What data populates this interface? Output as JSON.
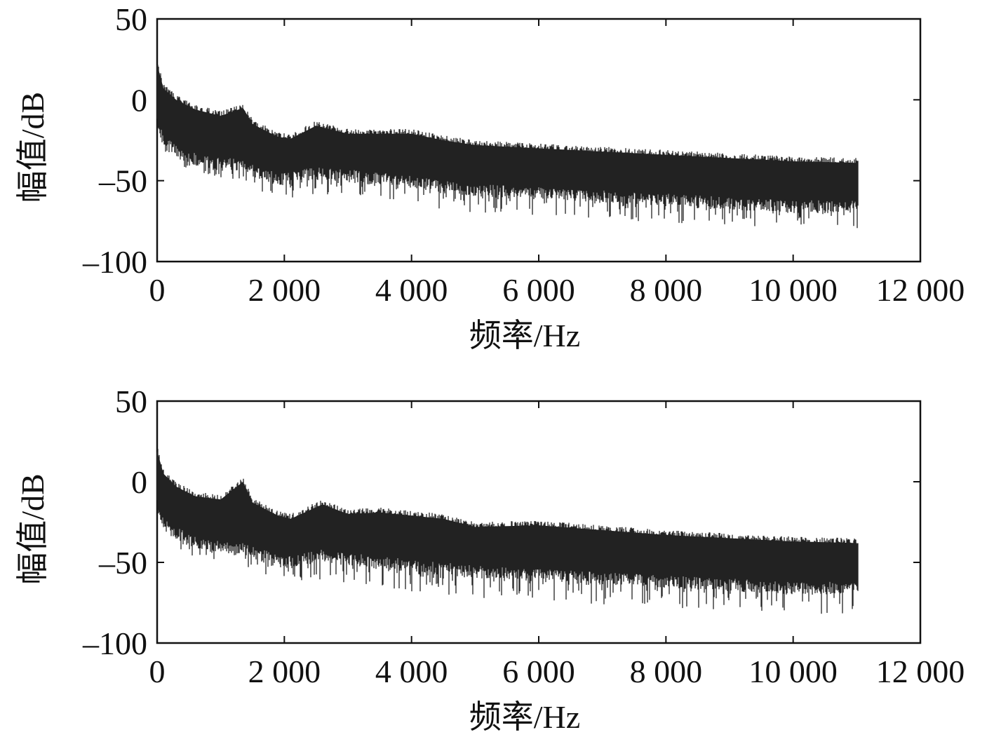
{
  "chart_data": [
    {
      "type": "line",
      "xlabel": "频率/Hz",
      "ylabel": "幅值/dB",
      "xlim": [
        0,
        12000
      ],
      "ylim": [
        -100,
        50
      ],
      "xticks": [
        0,
        2000,
        4000,
        6000,
        8000,
        10000,
        12000
      ],
      "xtick_labels": [
        "0",
        "2 000",
        "4 000",
        "6 000",
        "8 000",
        "10 000",
        "12 000"
      ],
      "yticks": [
        -100,
        -50,
        0,
        50
      ],
      "ytick_labels": [
        "-100",
        "-50",
        "0",
        "50"
      ],
      "grid": false,
      "series": [
        {
          "color": "#222222",
          "x_range": [
            0,
            11025
          ],
          "envelope_frequency": [
            0,
            100,
            300,
            600,
            1000,
            1350,
            1500,
            1900,
            2100,
            2500,
            3000,
            3500,
            4000,
            4500,
            5000,
            6000,
            7000,
            8000,
            9000,
            10000,
            11000
          ],
          "envelope_upper_db": [
            25,
            10,
            3,
            -3,
            -7,
            -2,
            -12,
            -20,
            -21,
            -13,
            -18,
            -18,
            -18,
            -22,
            -25,
            -27,
            -29,
            -31,
            -33,
            -35,
            -36
          ],
          "envelope_lower_db": [
            -20,
            -32,
            -40,
            -45,
            -48,
            -50,
            -55,
            -60,
            -62,
            -58,
            -60,
            -62,
            -65,
            -68,
            -70,
            -72,
            -74,
            -76,
            -78,
            -80,
            -80
          ],
          "envelope_body_db": [
            -10,
            -22,
            -28,
            -33,
            -36,
            -36,
            -40,
            -45,
            -45,
            -41,
            -43,
            -45,
            -47,
            -50,
            -52,
            -54,
            -56,
            -58,
            -60,
            -62,
            -62
          ]
        }
      ]
    },
    {
      "type": "line",
      "xlabel": "频率/Hz",
      "ylabel": "幅值/dB",
      "xlim": [
        0,
        12000
      ],
      "ylim": [
        -100,
        50
      ],
      "xticks": [
        0,
        2000,
        4000,
        6000,
        8000,
        10000,
        12000
      ],
      "xtick_labels": [
        "0",
        "2 000",
        "4 000",
        "6 000",
        "8 000",
        "10 000",
        "12 000"
      ],
      "yticks": [
        -100,
        -50,
        0,
        50
      ],
      "ytick_labels": [
        "-100",
        "-50",
        "0",
        "50"
      ],
      "grid": false,
      "series": [
        {
          "color": "#222222",
          "x_range": [
            0,
            11025
          ],
          "envelope_frequency": [
            0,
            100,
            300,
            600,
            1000,
            1350,
            1500,
            1900,
            2100,
            2600,
            3000,
            3500,
            4000,
            4500,
            5000,
            6000,
            7000,
            8000,
            9000,
            10000,
            11000
          ],
          "envelope_upper_db": [
            22,
            8,
            0,
            -6,
            -8,
            3,
            -10,
            -18,
            -20,
            -11,
            -17,
            -16,
            -18,
            -20,
            -25,
            -24,
            -27,
            -30,
            -32,
            -34,
            -35
          ],
          "envelope_lower_db": [
            -20,
            -32,
            -40,
            -48,
            -52,
            -55,
            -58,
            -60,
            -62,
            -62,
            -64,
            -66,
            -68,
            -70,
            -72,
            -74,
            -76,
            -78,
            -80,
            -82,
            -82
          ],
          "envelope_body_db": [
            -10,
            -22,
            -28,
            -34,
            -37,
            -38,
            -40,
            -45,
            -46,
            -42,
            -44,
            -46,
            -48,
            -50,
            -52,
            -54,
            -56,
            -58,
            -60,
            -62,
            -62
          ]
        }
      ]
    }
  ]
}
